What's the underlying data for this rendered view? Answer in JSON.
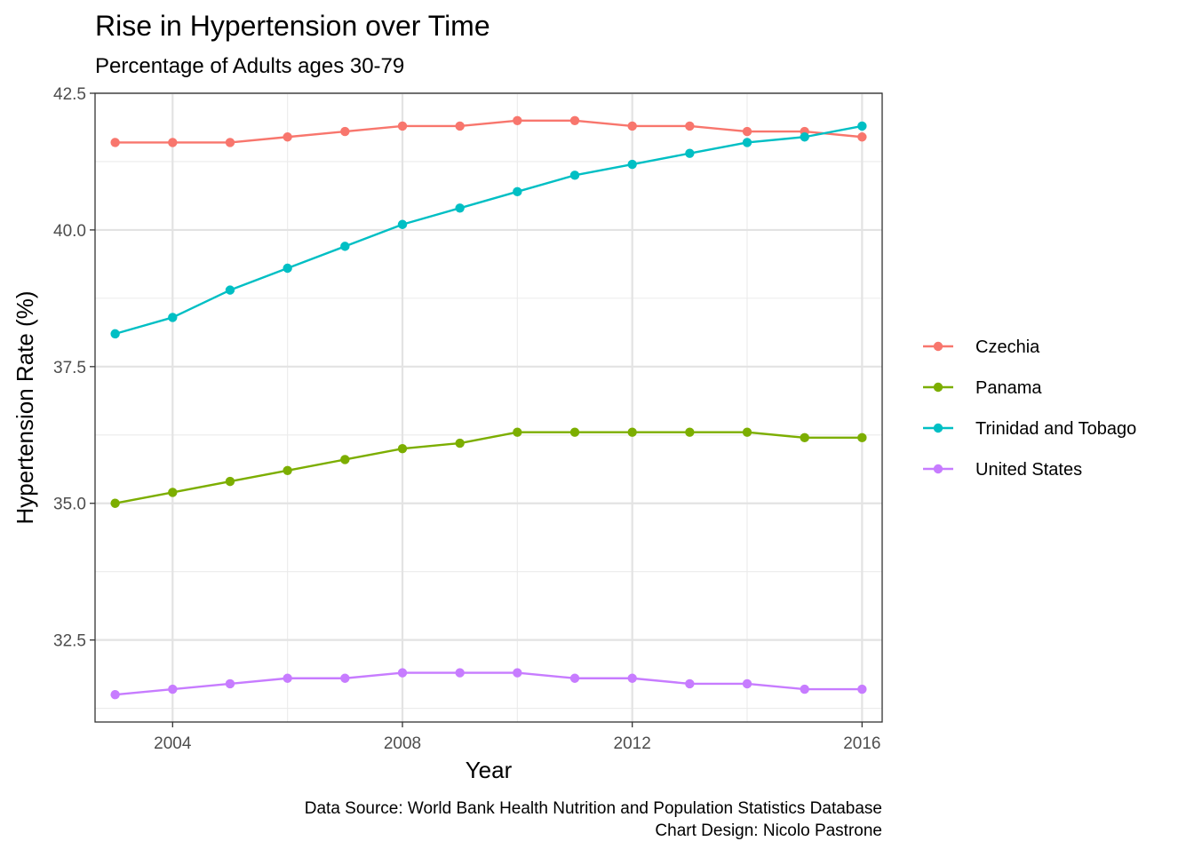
{
  "chart_data": {
    "type": "line",
    "title": "Rise in Hypertension over Time",
    "subtitle": "Percentage of Adults ages 30-79",
    "xlabel": "Year",
    "ylabel": "Hypertension Rate (%)",
    "caption_lines": [
      "Data Source: World Bank Health Nutrition and Population Statistics Database",
      "Chart Design: Nicolo Pastrone"
    ],
    "xlim": [
      2002.65,
      2016.35
    ],
    "ylim": [
      31.0,
      42.5
    ],
    "x_ticks": [
      2004,
      2008,
      2012,
      2016
    ],
    "x_tick_labels": [
      "2004",
      "2008",
      "2012",
      "2016"
    ],
    "x_minor_ticks": [
      2006,
      2010,
      2014
    ],
    "y_ticks": [
      32.5,
      35.0,
      37.5,
      40.0,
      42.5
    ],
    "y_tick_labels": [
      "32.5",
      "35.0",
      "37.5",
      "40.0",
      "42.5"
    ],
    "y_minor_ticks": [
      31.25,
      33.75,
      36.25,
      38.75,
      41.25
    ],
    "grid": true,
    "legend_position": "right",
    "x": [
      2003,
      2004,
      2005,
      2006,
      2007,
      2008,
      2009,
      2010,
      2011,
      2012,
      2013,
      2014,
      2015,
      2016
    ],
    "series": [
      {
        "name": "Czechia",
        "color": "#F8766D",
        "values": [
          41.6,
          41.6,
          41.6,
          41.7,
          41.8,
          41.9,
          41.9,
          42.0,
          42.0,
          41.9,
          41.9,
          41.8,
          41.8,
          41.7
        ]
      },
      {
        "name": "Panama",
        "color": "#7CAE00",
        "values": [
          35.0,
          35.2,
          35.4,
          35.6,
          35.8,
          36.0,
          36.1,
          36.3,
          36.3,
          36.3,
          36.3,
          36.3,
          36.2,
          36.2
        ]
      },
      {
        "name": "Trinidad and Tobago",
        "color": "#00BFC4",
        "values": [
          38.1,
          38.4,
          38.9,
          39.3,
          39.7,
          40.1,
          40.4,
          40.7,
          41.0,
          41.2,
          41.4,
          41.6,
          41.7,
          41.9
        ]
      },
      {
        "name": "United States",
        "color": "#C77CFF",
        "values": [
          31.5,
          31.6,
          31.7,
          31.8,
          31.8,
          31.9,
          31.9,
          31.9,
          31.8,
          31.8,
          31.7,
          31.7,
          31.6,
          31.6
        ]
      }
    ]
  }
}
